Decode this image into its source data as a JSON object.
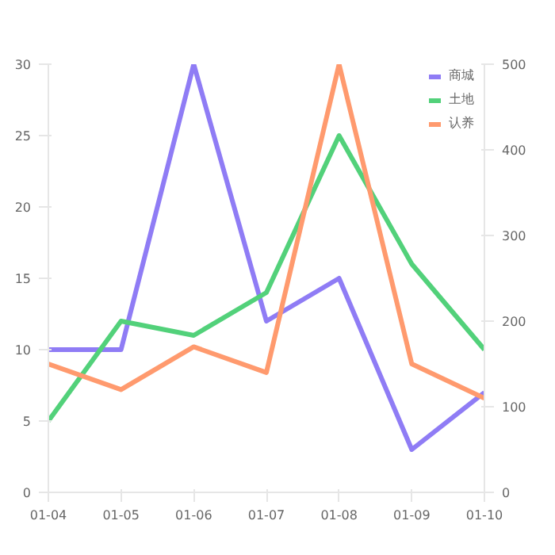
{
  "chart_data": {
    "type": "line",
    "categories": [
      "01-04",
      "01-05",
      "01-06",
      "01-07",
      "01-08",
      "01-09",
      "01-10"
    ],
    "series": [
      {
        "name": "商城",
        "color": "#8f7cf5",
        "values": [
          10,
          10,
          30,
          12,
          15,
          3,
          7
        ]
      },
      {
        "name": "土地",
        "color": "#52d17a",
        "values": [
          5,
          12,
          11,
          14,
          25,
          16,
          10
        ]
      },
      {
        "name": "认养",
        "color": "#ff9a6e",
        "axis": "y2",
        "values": [
          150,
          120,
          170,
          140,
          500,
          150,
          110
        ]
      }
    ],
    "ylim": [
      0,
      30
    ],
    "yticks": [
      0,
      5,
      10,
      15,
      20,
      25,
      30
    ],
    "y2lim": [
      0,
      500
    ],
    "y2ticks": [
      0,
      100,
      200,
      300,
      400,
      500
    ],
    "grid": false,
    "legend": "top right",
    "marker": "none",
    "line_style": "solid"
  }
}
